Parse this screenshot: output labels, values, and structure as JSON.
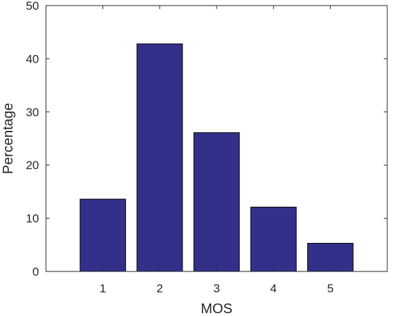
{
  "chart_data": {
    "type": "bar",
    "categories": [
      "1",
      "2",
      "3",
      "4",
      "5"
    ],
    "values": [
      13.6,
      42.8,
      26.1,
      12.1,
      5.3
    ],
    "xlabel": "MOS",
    "ylabel": "Percentage",
    "xlim": [
      0,
      6
    ],
    "ylim": [
      0,
      50
    ],
    "yticks": [
      "0",
      "10",
      "20",
      "30",
      "40",
      "50"
    ],
    "grid": false,
    "legend": "none",
    "bar_color": "#33308a"
  }
}
